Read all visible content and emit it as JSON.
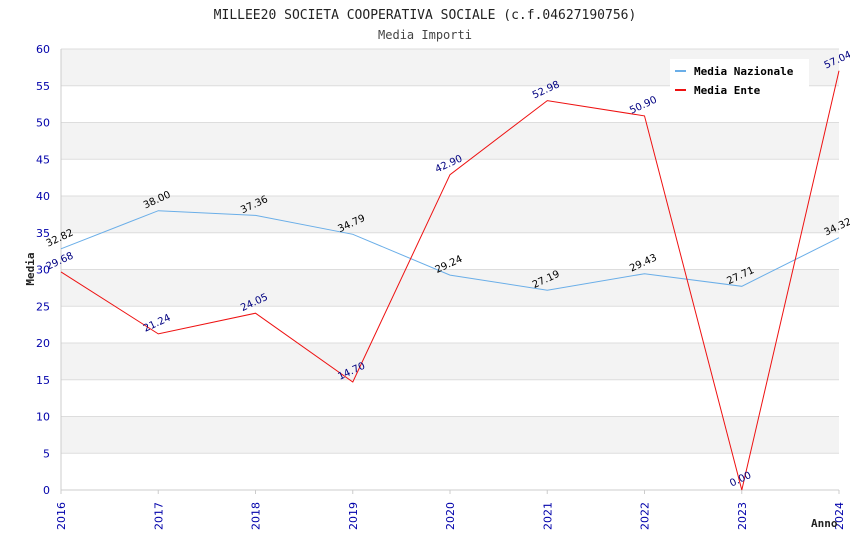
{
  "chart_data": {
    "type": "line",
    "title": "MILLEE20 SOCIETA COOPERATIVA SOCIALE (c.f.04627190756)",
    "subtitle": "Media Importi",
    "xlabel": "Anno",
    "ylabel": "Media",
    "categories": [
      "2016",
      "2017",
      "2018",
      "2019",
      "2020",
      "2021",
      "2022",
      "2023",
      "2024"
    ],
    "ylim": [
      0,
      60
    ],
    "yticks": [
      0,
      5,
      10,
      15,
      20,
      25,
      30,
      35,
      40,
      45,
      50,
      55,
      60
    ],
    "grid": "horizontal bands",
    "legend_position": "top-right",
    "series": [
      {
        "name": "Media Nazionale",
        "color": "#6aaee8",
        "values": [
          32.82,
          38.0,
          37.36,
          34.79,
          29.24,
          27.19,
          29.43,
          27.71,
          34.32
        ],
        "labels": [
          "32.82",
          "38.00",
          "37.36",
          "34.79",
          "29.24",
          "27.19",
          "29.43",
          "27.71",
          "34.32"
        ]
      },
      {
        "name": "Media Ente",
        "color": "#ee1111",
        "values": [
          29.68,
          21.24,
          24.05,
          14.7,
          42.9,
          52.98,
          50.9,
          0.0,
          57.04
        ],
        "labels": [
          "29.68",
          "21.24",
          "24.05",
          "14.70",
          "42.90",
          "52.98",
          "50.90",
          "0.00",
          "57.04"
        ]
      }
    ]
  }
}
